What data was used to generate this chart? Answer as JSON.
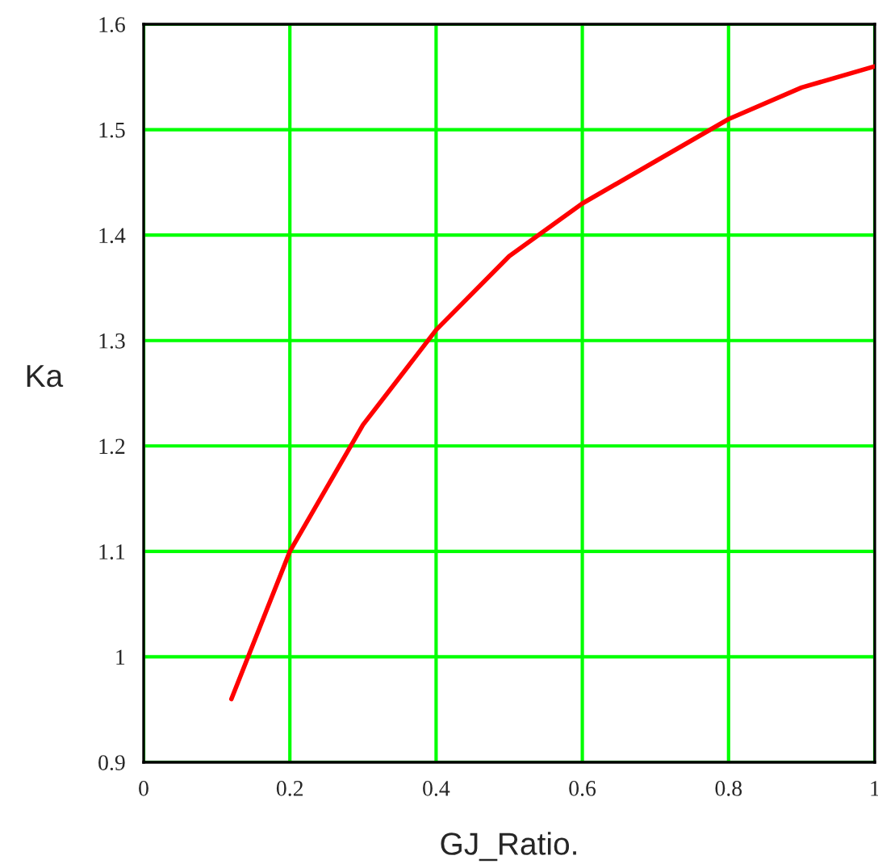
{
  "chart_data": {
    "type": "line",
    "xlabel": "GJ_Ratio.",
    "ylabel": "Ka",
    "x": [
      0.12,
      0.2,
      0.3,
      0.4,
      0.5,
      0.6,
      0.7,
      0.8,
      0.9,
      1.0
    ],
    "series": [
      {
        "color": "#ff0000",
        "values": [
          0.96,
          1.1,
          1.22,
          1.31,
          1.38,
          1.43,
          1.47,
          1.51,
          1.54,
          1.56
        ]
      }
    ],
    "xlim": [
      0,
      1
    ],
    "ylim": [
      0.9,
      1.6
    ],
    "xticks": [
      0,
      0.2,
      0.4,
      0.6,
      0.8,
      1
    ],
    "yticks": [
      0.9,
      1,
      1.1,
      1.2,
      1.3,
      1.4,
      1.5,
      1.6
    ],
    "grid": true,
    "legend": false,
    "line_style": "solid"
  }
}
